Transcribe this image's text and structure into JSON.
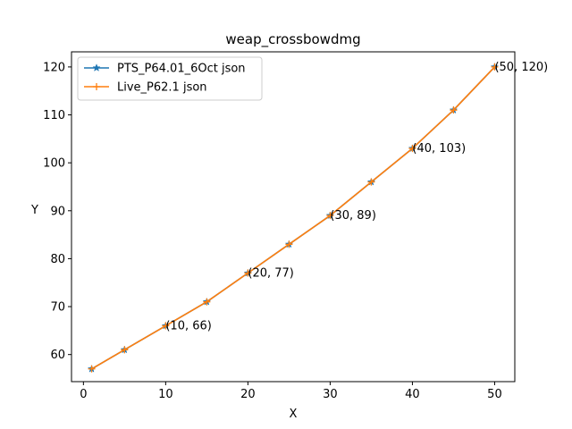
{
  "chart_data": {
    "type": "line",
    "title": "weap_crossbowdmg",
    "xlabel": "X",
    "ylabel": "Y",
    "xlim": [
      -1.45,
      52.45
    ],
    "ylim": [
      54.35,
      123.15
    ],
    "xticks": [
      0,
      10,
      20,
      30,
      40,
      50
    ],
    "yticks": [
      60,
      70,
      80,
      90,
      100,
      110,
      120
    ],
    "grid": false,
    "legend_position": "upper-left",
    "x": [
      1,
      5,
      10,
      15,
      20,
      25,
      30,
      35,
      40,
      45,
      50
    ],
    "series": [
      {
        "name": "PTS_P64.01_6Oct json",
        "color": "#1f77b4",
        "marker": "star",
        "values": [
          57,
          61,
          66,
          71,
          77,
          83,
          89,
          96,
          103,
          111,
          120
        ]
      },
      {
        "name": "Live_P62.1 json",
        "color": "#ff7f0e",
        "marker": "plus",
        "values": [
          57,
          61,
          66,
          71,
          77,
          83,
          89,
          96,
          103,
          111,
          120
        ]
      }
    ],
    "annotations": [
      {
        "x": 10,
        "y": 66,
        "text": "(10, 66)"
      },
      {
        "x": 20,
        "y": 77,
        "text": "(20, 77)"
      },
      {
        "x": 30,
        "y": 89,
        "text": "(30, 89)"
      },
      {
        "x": 40,
        "y": 103,
        "text": "(40, 103)"
      },
      {
        "x": 50,
        "y": 120,
        "text": "(50, 120)"
      }
    ]
  }
}
